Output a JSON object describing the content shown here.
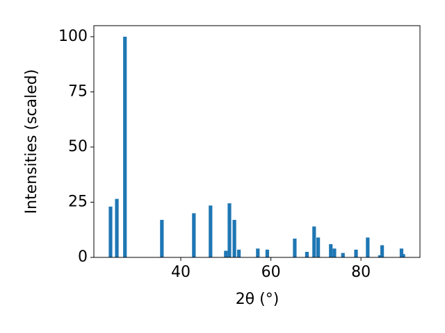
{
  "chart_data": {
    "type": "bar",
    "xlabel": "2θ (°)",
    "ylabel": "Intensities (scaled)",
    "x": [
      24.4,
      25.8,
      27.6,
      35.8,
      42.9,
      46.6,
      50.0,
      50.8,
      51.9,
      52.9,
      57.1,
      59.2,
      65.3,
      68.0,
      69.6,
      70.5,
      73.3,
      74.1,
      76.0,
      78.9,
      81.5,
      84.2,
      84.7,
      89.0,
      89.4
    ],
    "values": [
      23,
      26.5,
      100,
      17,
      20,
      23.5,
      3,
      24.5,
      17,
      3.5,
      4,
      3.5,
      8.5,
      2.5,
      14,
      9,
      6,
      4,
      2,
      3.5,
      9,
      1,
      5.5,
      4,
      1.5
    ],
    "color": "#1f77b4",
    "xlim": [
      20.7,
      93.1
    ],
    "xticks": [
      40,
      60,
      80
    ],
    "ylim": [
      0,
      105
    ],
    "yticks": [
      0,
      25,
      50,
      75,
      100
    ]
  }
}
